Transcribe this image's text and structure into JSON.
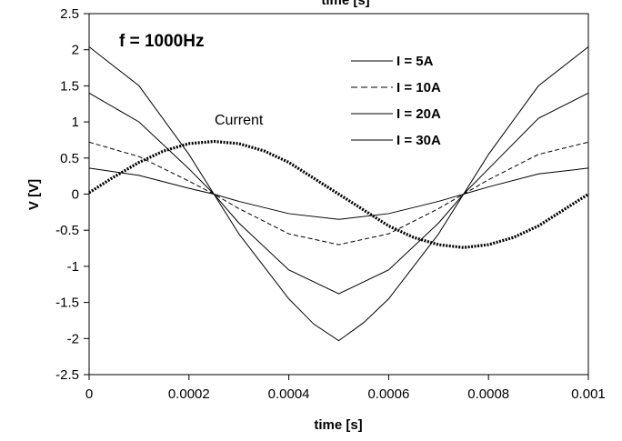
{
  "chart_data": {
    "type": "line",
    "title": "",
    "cropped_top_label": "time [s]",
    "xlabel": "time [s]",
    "ylabel": "V [V]",
    "xlim": [
      0,
      0.001
    ],
    "ylim": [
      -2.5,
      2.5
    ],
    "x_ticks": [
      "0",
      "0.0002",
      "0.0004",
      "0.0006",
      "0.0008",
      "0.001"
    ],
    "y_ticks": [
      "2.5",
      "2",
      "1.5",
      "1",
      "0.5",
      "0",
      "-0.5",
      "-1",
      "-1.5",
      "-2",
      "-2.5"
    ],
    "grid": false,
    "legend_position": "top-right",
    "annotations": {
      "frequency": "f = 1000Hz",
      "current": "Current"
    },
    "series": [
      {
        "name": "I = 5A",
        "style": "solid",
        "x": [
          0,
          0.0001,
          0.0002,
          0.00025,
          0.0003,
          0.0004,
          0.0005,
          0.0006,
          0.0007,
          0.00075,
          0.0008,
          0.0009,
          0.001
        ],
        "y": [
          0.36,
          0.26,
          0.08,
          0.0,
          -0.1,
          -0.27,
          -0.35,
          -0.27,
          -0.1,
          0.0,
          0.1,
          0.28,
          0.36
        ]
      },
      {
        "name": "I = 10A",
        "style": "dashed",
        "x": [
          0,
          0.0001,
          0.0002,
          0.00025,
          0.0003,
          0.0004,
          0.0005,
          0.0006,
          0.0007,
          0.00075,
          0.0008,
          0.0009,
          0.001
        ],
        "y": [
          0.72,
          0.52,
          0.18,
          0.0,
          -0.2,
          -0.55,
          -0.7,
          -0.55,
          -0.2,
          0.0,
          0.2,
          0.55,
          0.72
        ]
      },
      {
        "name": "I = 20A",
        "style": "solid",
        "x": [
          0,
          0.0001,
          0.0002,
          0.00025,
          0.0003,
          0.0004,
          0.0005,
          0.0006,
          0.0007,
          0.00075,
          0.0008,
          0.0009,
          0.001
        ],
        "y": [
          1.4,
          1.0,
          0.35,
          0.0,
          -0.4,
          -1.05,
          -1.38,
          -1.05,
          -0.4,
          0.0,
          0.35,
          1.05,
          1.4
        ]
      },
      {
        "name": "I = 30A",
        "style": "solid",
        "x": [
          0,
          0.0001,
          0.0002,
          0.00025,
          0.0003,
          0.0004,
          0.00045,
          0.0005,
          0.00055,
          0.0006,
          0.0007,
          0.00075,
          0.0008,
          0.0009,
          0.001
        ],
        "y": [
          2.04,
          1.5,
          0.55,
          0.0,
          -0.55,
          -1.45,
          -1.8,
          -2.03,
          -1.78,
          -1.45,
          -0.55,
          0.0,
          0.55,
          1.5,
          2.04
        ]
      },
      {
        "name": "Current",
        "style": "dotted-bold",
        "x": [
          0,
          5e-05,
          0.0001,
          0.00015,
          0.0002,
          0.00025,
          0.0003,
          0.00035,
          0.0004,
          0.00045,
          0.0005,
          0.00055,
          0.0006,
          0.00065,
          0.0007,
          0.00075,
          0.0008,
          0.00085,
          0.0009,
          0.00095,
          0.001
        ],
        "y": [
          0.02,
          0.24,
          0.44,
          0.6,
          0.7,
          0.73,
          0.7,
          0.6,
          0.44,
          0.22,
          0.0,
          -0.22,
          -0.44,
          -0.6,
          -0.7,
          -0.74,
          -0.7,
          -0.6,
          -0.44,
          -0.22,
          0.0
        ]
      }
    ]
  }
}
